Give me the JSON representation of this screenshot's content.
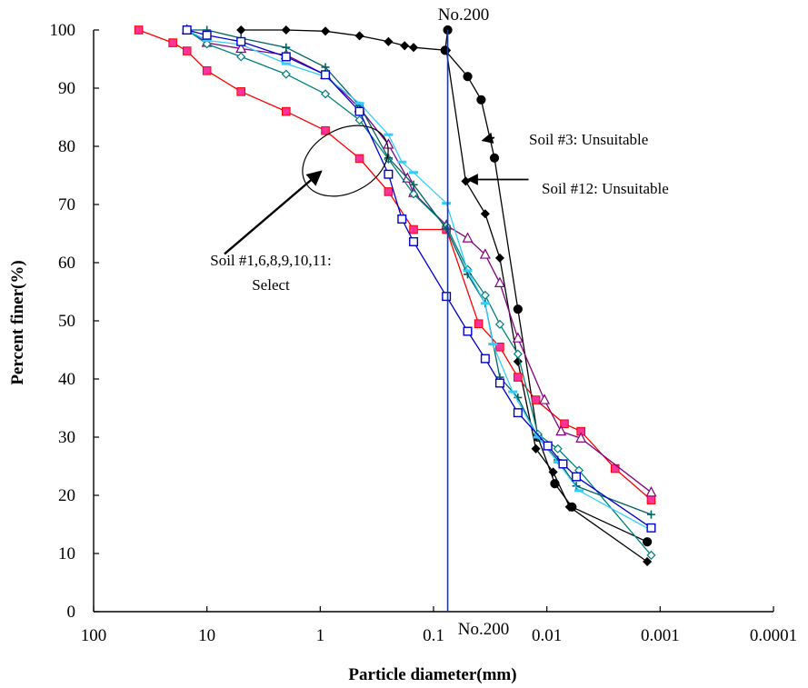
{
  "chart_data": {
    "type": "line",
    "title": "",
    "xlabel": "Particle diameter(mm)",
    "ylabel": "Percent finer(%)",
    "x_scale": "log",
    "x_reversed": true,
    "xlim": [
      100,
      0.0001
    ],
    "ylim": [
      0,
      100
    ],
    "grid": false,
    "x_ticks": [
      {
        "value": 100,
        "label": "100"
      },
      {
        "value": 10,
        "label": "10"
      },
      {
        "value": 1,
        "label": "1"
      },
      {
        "value": 0.1,
        "label": "0.1"
      },
      {
        "value": 0.01,
        "label": "0.01"
      },
      {
        "value": 0.001,
        "label": "0.001"
      },
      {
        "value": 0.0001,
        "label": "0.0001"
      }
    ],
    "y_ticks": [
      {
        "value": 0,
        "label": "0"
      },
      {
        "value": 10,
        "label": "10"
      },
      {
        "value": 20,
        "label": "20"
      },
      {
        "value": 30,
        "label": "30"
      },
      {
        "value": 40,
        "label": "40"
      },
      {
        "value": 50,
        "label": "50"
      },
      {
        "value": 60,
        "label": "60"
      },
      {
        "value": 70,
        "label": "70"
      },
      {
        "value": 80,
        "label": "80"
      },
      {
        "value": 90,
        "label": "90"
      },
      {
        "value": 100,
        "label": "100"
      }
    ],
    "reference_line": {
      "x": 0.075,
      "label_top": "No.200",
      "label_bottom": "No.200",
      "color": "#1f3a93"
    },
    "series": [
      {
        "marker": "circle",
        "color": "#000000",
        "fill": "#000000",
        "x": [
          0.075,
          0.079,
          0.05,
          0.038,
          0.029,
          0.018,
          0.012,
          0.0085,
          0.006,
          0.0013
        ],
        "y": [
          100,
          96.5,
          92,
          88,
          78,
          52,
          30,
          22,
          18,
          12
        ]
      },
      {
        "marker": "diamond",
        "color": "#000000",
        "fill": "#000000",
        "x": [
          5,
          2,
          0.9,
          0.45,
          0.25,
          0.18,
          0.15,
          0.077,
          0.052,
          0.035,
          0.026,
          0.018,
          0.0125,
          0.0088,
          0.0063,
          0.0013
        ],
        "y": [
          100,
          100,
          99.8,
          99,
          98,
          97.3,
          97,
          96.5,
          74,
          68.4,
          60.8,
          43,
          28,
          24,
          18,
          8.6
        ]
      },
      {
        "marker": "square",
        "color": "#ff0000",
        "fill": "#ff3399",
        "x": [
          40,
          20,
          15,
          10,
          5,
          2,
          0.9,
          0.45,
          0.25,
          0.15,
          0.077,
          0.04,
          0.026,
          0.018,
          0.0125,
          0.007,
          0.005,
          0.0025,
          0.0012
        ],
        "y": [
          100,
          97.8,
          96.4,
          93,
          89.4,
          86,
          82.7,
          77.9,
          72.2,
          65.7,
          65.7,
          49.5,
          45.5,
          40.3,
          36.4,
          32.3,
          31,
          24.6,
          19.2
        ]
      },
      {
        "marker": "triangle",
        "color": "#800080",
        "fill": "#ffffff",
        "x": [
          15,
          10,
          5,
          2,
          0.9,
          0.45,
          0.25,
          0.17,
          0.15,
          0.077,
          0.05,
          0.035,
          0.026,
          0.018,
          0.0105,
          0.0075,
          0.005,
          0.0012
        ],
        "y": [
          100,
          97.8,
          96.8,
          95.7,
          92.3,
          86.6,
          80.3,
          74.5,
          72,
          66.4,
          64.2,
          61.4,
          56.5,
          47,
          36.4,
          31,
          29.8,
          20.5
        ]
      },
      {
        "marker": "diamond-open",
        "color": "#008080",
        "fill": "#ffffff",
        "x": [
          15,
          10,
          5,
          2,
          0.9,
          0.45,
          0.25,
          0.15,
          0.077,
          0.05,
          0.035,
          0.026,
          0.018,
          0.012,
          0.008,
          0.0052,
          0.0012
        ],
        "y": [
          100,
          97.6,
          95.4,
          92.4,
          89,
          84.5,
          77.8,
          71.8,
          66.3,
          58.8,
          54.4,
          49.4,
          44.3,
          30.5,
          28,
          24.3,
          9.7
        ]
      },
      {
        "marker": "plus",
        "color": "#006060",
        "fill": "#006060",
        "x": [
          15,
          10,
          5,
          2,
          0.9,
          0.45,
          0.25,
          0.15,
          0.077,
          0.05,
          0.035,
          0.026,
          0.018,
          0.012,
          0.008,
          0.0055,
          0.0012
        ],
        "y": [
          100,
          100,
          98.6,
          97,
          93.6,
          87,
          78,
          73.4,
          65.8,
          58,
          53,
          40.3,
          36.8,
          30,
          26.1,
          21.6,
          16.7
        ]
      },
      {
        "marker": "dash",
        "color": "#33ccff",
        "fill": "#33ccff",
        "x": [
          15,
          10,
          5,
          2,
          0.9,
          0.45,
          0.25,
          0.19,
          0.15,
          0.077,
          0.05,
          0.035,
          0.03,
          0.02,
          0.012,
          0.008,
          0.0052,
          0.0012
        ],
        "y": [
          100,
          98.2,
          97.5,
          94.2,
          92,
          87.4,
          82,
          77.3,
          75.5,
          70.2,
          58.6,
          53,
          46,
          37.8,
          30,
          25.7,
          20.8,
          14
        ]
      },
      {
        "marker": "square-open",
        "color": "#0000cc",
        "fill": "#ffffff",
        "x": [
          15,
          10,
          5,
          2,
          0.9,
          0.45,
          0.25,
          0.19,
          0.15,
          0.077,
          0.05,
          0.035,
          0.026,
          0.018,
          0.0098,
          0.0072,
          0.0055,
          0.0012
        ],
        "y": [
          100,
          99.1,
          98,
          95.4,
          92.3,
          86,
          75.2,
          67.5,
          63.6,
          54.2,
          48.2,
          43.5,
          39.3,
          34.2,
          28.5,
          25.4,
          23.2,
          14.4
        ]
      }
    ],
    "annotations": [
      {
        "text": "Soil #3: Unsuitable",
        "arrow_from": {
          "x": 0.029,
          "y": 81.5
        },
        "arrow_to": {
          "x": 0.037,
          "y": 81
        }
      },
      {
        "text": "Soil #12: Unsuitable",
        "arrow_from": {
          "x": 0.0145,
          "y": 74.3
        },
        "arrow_to": {
          "x": 0.05,
          "y": 74.3
        }
      },
      {
        "text_lines": [
          "Soil #1,6,8,9,10,11:",
          "Select"
        ],
        "arrow_from": {
          "x": 7.0,
          "y": 61.5
        },
        "arrow_to": {
          "x": 0.98,
          "y": 75.7
        }
      }
    ],
    "ellipse": {
      "cx": 0.6,
      "cy": 77.5
    }
  }
}
